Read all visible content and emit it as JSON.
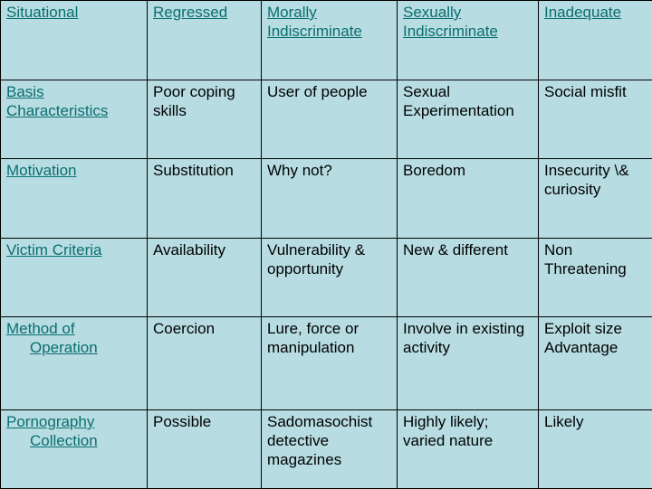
{
  "table": {
    "rows": [
      [
        "Situational",
        "Regressed",
        "Morally Indiscriminate",
        "Sexually Indiscriminate",
        "Inadequate"
      ],
      [
        "Basis Characteristics",
        "Poor coping skills",
        "User of people",
        "Sexual Experimentation",
        "Social misfit"
      ],
      [
        "Motivation",
        "Substitution",
        "Why not?",
        "Boredom",
        "Insecurity \\& curiosity"
      ],
      [
        "Victim Criteria",
        "Availability",
        "Vulnerability & opportunity",
        "New & different",
        "Non Threatening"
      ],
      [
        "Method of Operation",
        "Coercion",
        "Lure, force or manipulation",
        "Involve in existing activity",
        "Exploit size Advantage"
      ],
      [
        "Pornography Collection",
        "Possible",
        "Sadomasochist detective magazines",
        "Highly likely; varied nature",
        "Likely"
      ]
    ],
    "split_labels": {
      "method_line1": "Method of",
      "method_line2": "Operation",
      "porn_line1": "Pornography",
      "porn_line2": "Collection"
    }
  },
  "colors": {
    "background": "#b7dde3",
    "link_text": "#0b6e6e",
    "border": "#000000"
  }
}
